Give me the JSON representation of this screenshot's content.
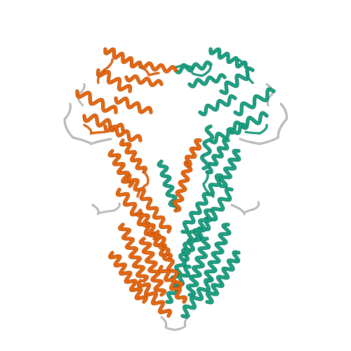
{
  "image": {
    "subject": "protein-ribbon-structure",
    "background": "#ffffff",
    "chains": [
      {
        "id": "A",
        "color": "#e8680f",
        "dark": "#b84d08"
      },
      {
        "id": "B",
        "color": "#1aa384",
        "dark": "#0f7a62"
      }
    ],
    "loop_color": "#c8c8c8",
    "loop_dark": "#8c8c8c"
  }
}
